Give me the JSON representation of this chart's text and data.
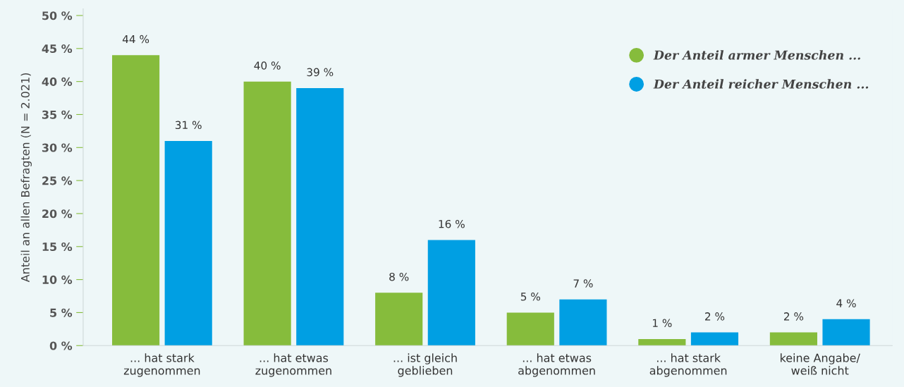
{
  "chart_data": {
    "type": "bar",
    "ylabel": "Anteil an allen Befragten (N = 2.021)",
    "categories": [
      "... hat stark\nzugenommen",
      "... hat etwas\nzugenommen",
      "... ist gleich\ngeblieben",
      "... hat etwas\nabgenommen",
      "... hat stark\nabgenommen",
      "keine Angabe/\nweiß nicht"
    ],
    "series": [
      {
        "name": "Der Anteil armer Menschen ...",
        "color": "#86bc3c",
        "values": [
          44,
          40,
          8,
          5,
          1,
          2
        ],
        "value_labels": [
          "44 %",
          "40 %",
          "8 %",
          "5 %",
          "1 %",
          "2 %"
        ]
      },
      {
        "name": "Der Anteil reicher Menschen ...",
        "color": "#009fe3",
        "values": [
          31,
          39,
          16,
          7,
          2,
          4
        ],
        "value_labels": [
          "31 %",
          "39 %",
          "16 %",
          "7 %",
          "2 %",
          "4 %"
        ]
      }
    ],
    "ylim": [
      0,
      51
    ],
    "yticks": [
      {
        "value": 0,
        "label": "0 %"
      },
      {
        "value": 5,
        "label": "5 %"
      },
      {
        "value": 10,
        "label": "10 %"
      },
      {
        "value": 15,
        "label": "15 %"
      },
      {
        "value": 20,
        "label": "20 %"
      },
      {
        "value": 25,
        "label": "25 %"
      },
      {
        "value": 30,
        "label": "30 %"
      },
      {
        "value": 35,
        "label": "35 %"
      },
      {
        "value": 40,
        "label": "40 %"
      },
      {
        "value": 45,
        "label": "45 %"
      },
      {
        "value": 50,
        "label": "50 %"
      }
    ],
    "grid": false,
    "legend": "top right"
  }
}
